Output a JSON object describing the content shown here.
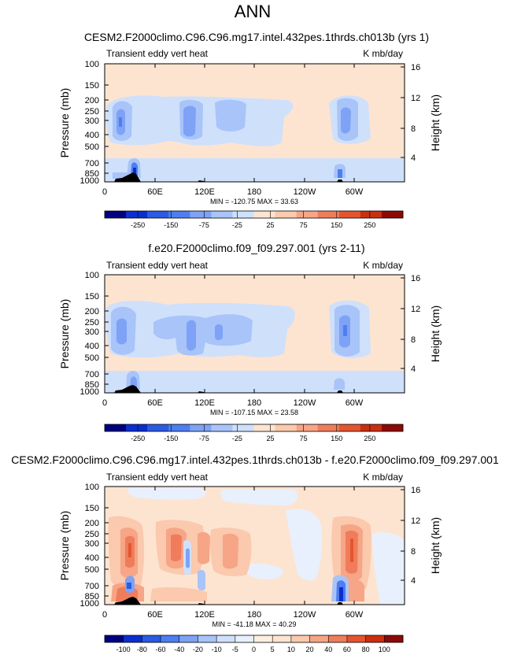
{
  "page_title": "ANN",
  "chart_data": [
    {
      "type": "heatmap",
      "title": "CESM2.F2000climo.C96.C96.mg17.intel.432pes.1thrds.ch013b (yrs 1)",
      "left_label": "Transient eddy vert heat",
      "right_label": "K mb/day",
      "ylabel": "Pressure (mb)",
      "ylabel_right": "Height (km)",
      "x_ticks": [
        "0",
        "60E",
        "120E",
        "180",
        "120W",
        "60W"
      ],
      "y_ticks": [
        "100",
        "150",
        "200",
        "250",
        "300",
        "400",
        "500",
        "700",
        "850",
        "1000"
      ],
      "y_ticks_right": [
        "16",
        "12",
        "8",
        "4"
      ],
      "stats": "MIN = -120.75  MAX = 33.63",
      "colorbar_labels": [
        "-250",
        "-150",
        "-75",
        "-25",
        "25",
        "75",
        "150",
        "250"
      ],
      "colorbar_colors": [
        "#00007f",
        "#0a2ecf",
        "#2b5ae3",
        "#4e7ef0",
        "#7ea2f5",
        "#a8c4f9",
        "#cfe0fb",
        "#fde4d0",
        "#fbc9ad",
        "#f6a586",
        "#ef7d5b",
        "#e4552f",
        "#c9300f",
        "#8b0a06"
      ]
    },
    {
      "type": "heatmap",
      "title": "f.e20.F2000climo.f09_f09.297.001 (yrs 2-11)",
      "left_label": "Transient eddy vert heat",
      "right_label": "K mb/day",
      "ylabel": "Pressure (mb)",
      "ylabel_right": "Height (km)",
      "x_ticks": [
        "0",
        "60E",
        "120E",
        "180",
        "120W",
        "60W"
      ],
      "y_ticks": [
        "100",
        "150",
        "200",
        "250",
        "300",
        "400",
        "500",
        "700",
        "850",
        "1000"
      ],
      "y_ticks_right": [
        "16",
        "12",
        "8",
        "4"
      ],
      "stats": "MIN = -107.15  MAX = 23.58",
      "colorbar_labels": [
        "-250",
        "-150",
        "-75",
        "-25",
        "25",
        "75",
        "150",
        "250"
      ],
      "colorbar_colors": [
        "#00007f",
        "#0a2ecf",
        "#2b5ae3",
        "#4e7ef0",
        "#7ea2f5",
        "#a8c4f9",
        "#cfe0fb",
        "#fde4d0",
        "#fbc9ad",
        "#f6a586",
        "#ef7d5b",
        "#e4552f",
        "#c9300f",
        "#8b0a06"
      ]
    },
    {
      "type": "heatmap",
      "title": "CESM2.F2000climo.C96.C96.mg17.intel.432pes.1thrds.ch013b - f.e20.F2000climo.f09_f09.297.001",
      "left_label": "Transient eddy vert heat",
      "right_label": "K mb/day",
      "ylabel": "Pressure (mb)",
      "ylabel_right": "Height (km)",
      "x_ticks": [
        "0",
        "60E",
        "120E",
        "180",
        "120W",
        "60W"
      ],
      "y_ticks": [
        "100",
        "150",
        "200",
        "250",
        "300",
        "400",
        "500",
        "700",
        "850",
        "1000"
      ],
      "y_ticks_right": [
        "16",
        "12",
        "8",
        "4"
      ],
      "stats": "MIN = -41.18  MAX = 40.29",
      "colorbar_labels": [
        "-100",
        "-80",
        "-60",
        "-40",
        "-20",
        "-10",
        "-5",
        "0",
        "5",
        "10",
        "20",
        "40",
        "60",
        "80",
        "100"
      ],
      "colorbar_colors": [
        "#00007f",
        "#0a2ecf",
        "#2b5ae3",
        "#4e7ef0",
        "#7ea2f5",
        "#a8c4f9",
        "#cfe0fb",
        "#e8f0fd",
        "#fdeee2",
        "#fde4d0",
        "#fbc9ad",
        "#f6a586",
        "#ef7d5b",
        "#e4552f",
        "#c9300f",
        "#8b0a06"
      ]
    }
  ],
  "colors": {
    "background_panel": "#fde4d0",
    "light_blue": "#cfe0fb",
    "mid_blue": "#a8c4f9",
    "blue": "#7ea2f5",
    "deep_blue": "#4e7ef0",
    "light_red": "#fbc9ad",
    "red": "#f6a586",
    "deep_red": "#ef7d5b",
    "terrain": "#000000"
  }
}
